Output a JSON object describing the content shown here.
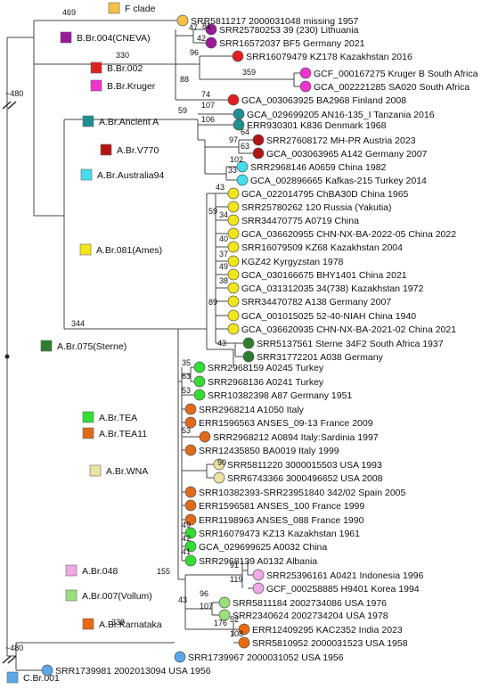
{
  "colors": {
    "F": "#f5c242",
    "CNEVA": "#9a1a9a",
    "BBr002": "#e02020",
    "Kruger": "#ee33cc",
    "AncA": "#1f8f8f",
    "V770": "#b51414",
    "Aus94": "#44ddee",
    "Ames": "#f2e61a",
    "Sterne": "#2e7d2e",
    "TEA": "#33dd33",
    "TEA11": "#e06a1a",
    "WNA": "#ece3a0",
    "A048": "#f0a8e8",
    "Vollum": "#99e07a",
    "Karn": "#e86a10",
    "CBr001": "#5aa6e6"
  },
  "root_labels": {
    "top": "~480",
    "bottom": "~480"
  },
  "legend": [
    {
      "label": "F clade",
      "color": "F"
    },
    {
      "label": "B.Br.004(CNEVA)",
      "color": "CNEVA"
    },
    {
      "label": "B.Br.002",
      "color": "BBr002"
    },
    {
      "label": "B.Br.Kruger",
      "color": "Kruger"
    },
    {
      "label": "A.Br.Ancient A",
      "color": "AncA"
    },
    {
      "label": "A.Br.V770",
      "color": "V770"
    },
    {
      "label": "A.Br.Australia94",
      "color": "Aus94"
    },
    {
      "label": "A.Br.081(Ames)",
      "color": "Ames"
    },
    {
      "label": "A.Br.075(Sterne)",
      "color": "Sterne"
    },
    {
      "label": "A.Br.TEA",
      "color": "TEA"
    },
    {
      "label": "A.Br.TEA11",
      "color": "TEA11"
    },
    {
      "label": "A.Br.WNA",
      "color": "WNA"
    },
    {
      "label": "A.Br.048",
      "color": "A048"
    },
    {
      "label": "A.Br.007(Vollum)",
      "color": "Vollum"
    },
    {
      "label": "A.Br.Karnataka",
      "color": "Karn"
    },
    {
      "label": "C.Br.001",
      "color": "CBr001"
    }
  ],
  "tips": [
    {
      "label": "SRR5811217 2000031048 missing 1957",
      "color": "F"
    },
    {
      "label": "SRR25780253 39 (230) Lithuania",
      "color": "CNEVA"
    },
    {
      "label": "SRR16572037 BF5 Germany 2021",
      "color": "CNEVA"
    },
    {
      "label": "SRR16079479 KZ178 Kazakhstan 2016",
      "color": "BBr002"
    },
    {
      "label": "GCF_000167275 Kruger B South Africa",
      "color": "Kruger"
    },
    {
      "label": "GCA_002221285 SA020 South Africa",
      "color": "Kruger"
    },
    {
      "label": "GCA_003063925 BA2968 Finland 2008",
      "color": "BBr002"
    },
    {
      "label": "GCA_029699205 AN16-135_I Tanzania 2016",
      "color": "AncA"
    },
    {
      "label": "ERR930301 K836 Denmark 1968",
      "color": "AncA"
    },
    {
      "label": "SRR27608172 MH-PR Austria 2023",
      "color": "V770"
    },
    {
      "label": "GCA_003063965 A142 Germany 2007",
      "color": "V770"
    },
    {
      "label": "SRR2968146 A0659 China 1982",
      "color": "Aus94"
    },
    {
      "label": "GCA_002896665 Kafkas-215 Turkey 2014",
      "color": "Aus94"
    },
    {
      "label": "GCA_022014795 ChBA30D China 1965",
      "color": "Ames"
    },
    {
      "label": "SRR25780262 120 Russia (Yakutia)",
      "color": "Ames"
    },
    {
      "label": "SRR34470775 A0719 China",
      "color": "Ames"
    },
    {
      "label": "GCA_036620955 CHN-NX-BA-2022-05 China 2022",
      "color": "Ames"
    },
    {
      "label": "SRR16079509 KZ68 Kazakhstan 2004",
      "color": "Ames"
    },
    {
      "label": "KGZ42 Kyrgyzstan 1978",
      "color": "Ames"
    },
    {
      "label": "GCA_030166675 BHY1401 China 2021",
      "color": "Ames"
    },
    {
      "label": "GCA_031312035 34(738) Kazakhstan 1972",
      "color": "Ames"
    },
    {
      "label": "SRR34470782 A138 Germany 2007",
      "color": "Ames"
    },
    {
      "label": "GCA_001015025 52-40-NIAH China 1940",
      "color": "Ames"
    },
    {
      "label": "GCA_036620935 CHN-NX-BA-2021-02 China 2021",
      "color": "Ames"
    },
    {
      "label": "SRR5137561 Sterne 34F2 South Africa 1937",
      "color": "Sterne"
    },
    {
      "label": "SRR31772201 A038 Germany",
      "color": "Sterne"
    },
    {
      "label": "SRR2968159 A0245 Turkey",
      "color": "TEA"
    },
    {
      "label": "SRR2968136 A0241 Turkey",
      "color": "TEA"
    },
    {
      "label": "SRR10382398 A87 Germany 1951",
      "color": "TEA"
    },
    {
      "label": "SRR2968214 A1050 Italy",
      "color": "TEA11"
    },
    {
      "label": "ERR1596563 ANSES_09-13 France 2009",
      "color": "TEA11"
    },
    {
      "label": "SRR2968212 A0894 Italy:Sardinia 1997",
      "color": "TEA11"
    },
    {
      "label": "SRR12435850 BA0019 Italy 1999",
      "color": "TEA11"
    },
    {
      "label": "SRR5811220 3000015503 USA 1993",
      "color": "WNA"
    },
    {
      "label": "SRR6743366 3000496652 USA 2008",
      "color": "WNA"
    },
    {
      "label": "SRR10382393-SRR23951840 342/02 Spain 2005",
      "color": "TEA11"
    },
    {
      "label": "ERR1596581 ANSES_100 France 1999",
      "color": "TEA11"
    },
    {
      "label": "ERR1198963 ANSES_088 France 1990",
      "color": "TEA11"
    },
    {
      "label": "SRR16079473 KZ13 Kazakhstan 1961",
      "color": "TEA"
    },
    {
      "label": "GCA_029699625 A0032 China",
      "color": "TEA"
    },
    {
      "label": "SRR2968139 A0132 Albania",
      "color": "TEA"
    },
    {
      "label": "SRR25396161 A0421 Indonesia 1996",
      "color": "A048"
    },
    {
      "label": "GCF_000258885 H9401 Korea 1994",
      "color": "A048"
    },
    {
      "label": "SRR5811184 2002734086 USA 1976",
      "color": "Vollum"
    },
    {
      "label": "SRR2340624 2002734204 USA 1978",
      "color": "Vollum"
    },
    {
      "label": "ERR12409295 KAC2352 India 2023",
      "color": "Karn"
    },
    {
      "label": "SRR5810952 2000031523 USA 1958",
      "color": "Karn"
    },
    {
      "label": "SRR1739967 2000031052 USA 1956",
      "color": "CBr001"
    },
    {
      "label": "SRR1739981 2002013094 USA 1956",
      "color": "CBr001"
    }
  ],
  "support_values": [
    "469",
    "47",
    "81",
    "42",
    "330",
    "96",
    "359",
    "88",
    "74",
    "59",
    "107",
    "106",
    "97",
    "64",
    "63",
    "102",
    "33",
    "43",
    "59",
    "34",
    "40",
    "37",
    "49",
    "38",
    "89",
    "344",
    "43",
    "35",
    "63",
    "53",
    "53",
    "90",
    "49",
    "42",
    "41",
    "155",
    "91",
    "119",
    "43",
    "96",
    "107",
    "176",
    "52",
    "108",
    "338"
  ]
}
